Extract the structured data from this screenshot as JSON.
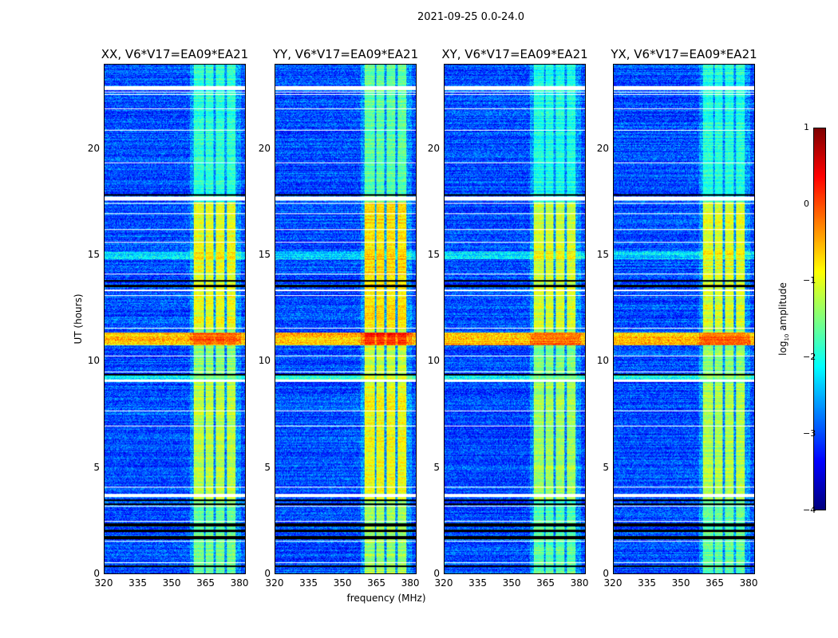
{
  "chart_data": {
    "type": "heatmap",
    "title": "2021-09-25 0.0-24.0",
    "xlabel": "frequency (MHz)",
    "ylabel": "UT (hours)",
    "xlim": [
      320,
      382.8
    ],
    "ylim": [
      0,
      24
    ],
    "xticks": [
      320,
      335,
      350,
      365,
      380
    ],
    "yticks": [
      0,
      5,
      10,
      15,
      20
    ],
    "colorbar": {
      "label": "log10 amplitude",
      "label_main": "log",
      "label_sub": "10",
      "label_rest": " amplitude",
      "range": [
        -4,
        1
      ],
      "ticks": [
        "1",
        "0",
        "−1",
        "−2",
        "−3",
        "−4"
      ],
      "colormap": "jet"
    },
    "panels": [
      {
        "title": "XX, V6*V17=EA09*EA21",
        "gain": 0.0
      },
      {
        "title": "YY, V6*V17=EA09*EA21",
        "gain": 0.25
      },
      {
        "title": "XY, V6*V17=EA09*EA21",
        "gain": -0.1
      },
      {
        "title": "YX, V6*V17=EA09*EA21",
        "gain": -0.05
      }
    ],
    "background_level": -3.0,
    "rfi_channels_mhz": [
      [
        360,
        364.5
      ],
      [
        365.2,
        368.7
      ],
      [
        369.8,
        373.6
      ],
      [
        374.7,
        378.6
      ]
    ],
    "rfi_levels": [
      {
        "t": [
          0,
          3.5
        ],
        "level": -1.6
      },
      {
        "t": [
          3.5,
          9.0
        ],
        "level": -1.2
      },
      {
        "t": [
          9.0,
          11.5
        ],
        "level": -1.4
      },
      {
        "t": [
          11.5,
          17.5
        ],
        "level": -1.0
      },
      {
        "t": [
          17.5,
          24
        ],
        "level": -1.9
      }
    ],
    "broadband_events": [
      {
        "t": [
          10.75,
          11.35
        ],
        "level": -0.6,
        "rfi_level": -0.1
      },
      {
        "t": [
          14.8,
          15.2
        ],
        "level": -2.3,
        "rfi_level": -0.8
      },
      {
        "t": [
          9.1,
          9.4
        ],
        "level": -2.1,
        "rfi_level": -1.4
      }
    ],
    "flagged_hours": [
      [
        22.8,
        23.0
      ],
      [
        22.7,
        22.72
      ],
      [
        22.58,
        22.6
      ],
      [
        22.45,
        22.47
      ],
      [
        21.9,
        21.92
      ],
      [
        20.9,
        20.92
      ],
      [
        19.35,
        19.37
      ],
      [
        17.6,
        17.78
      ],
      [
        17.45,
        17.47
      ],
      [
        16.95,
        16.97
      ],
      [
        16.2,
        16.22
      ],
      [
        15.6,
        15.62
      ],
      [
        14.1,
        14.12
      ],
      [
        13.3,
        13.4
      ],
      [
        13.1,
        13.12
      ],
      [
        11.8,
        11.82
      ],
      [
        11.55,
        11.57
      ],
      [
        10.25,
        10.27
      ],
      [
        9.5,
        9.52
      ],
      [
        9.05,
        9.15
      ],
      [
        8.5,
        8.52
      ],
      [
        7.65,
        7.67
      ],
      [
        6.95,
        6.97
      ],
      [
        6.1,
        6.12
      ],
      [
        4.9,
        4.92
      ],
      [
        4.05,
        4.07
      ],
      [
        3.6,
        3.75
      ],
      [
        3.15,
        3.17
      ],
      [
        2.45,
        2.47
      ],
      [
        1.5,
        1.52
      ],
      [
        0.85,
        0.87
      ],
      [
        0.5,
        0.52
      ]
    ],
    "zero_hours": [
      [
        1.6,
        1.75
      ],
      [
        1.95,
        2.05
      ],
      [
        2.2,
        2.38
      ],
      [
        3.22,
        3.3
      ],
      [
        3.4,
        3.5
      ],
      [
        13.5,
        13.6
      ],
      [
        13.75,
        13.85
      ],
      [
        17.8,
        17.88
      ],
      [
        9.35,
        9.42
      ],
      [
        0.3,
        0.36
      ]
    ]
  }
}
